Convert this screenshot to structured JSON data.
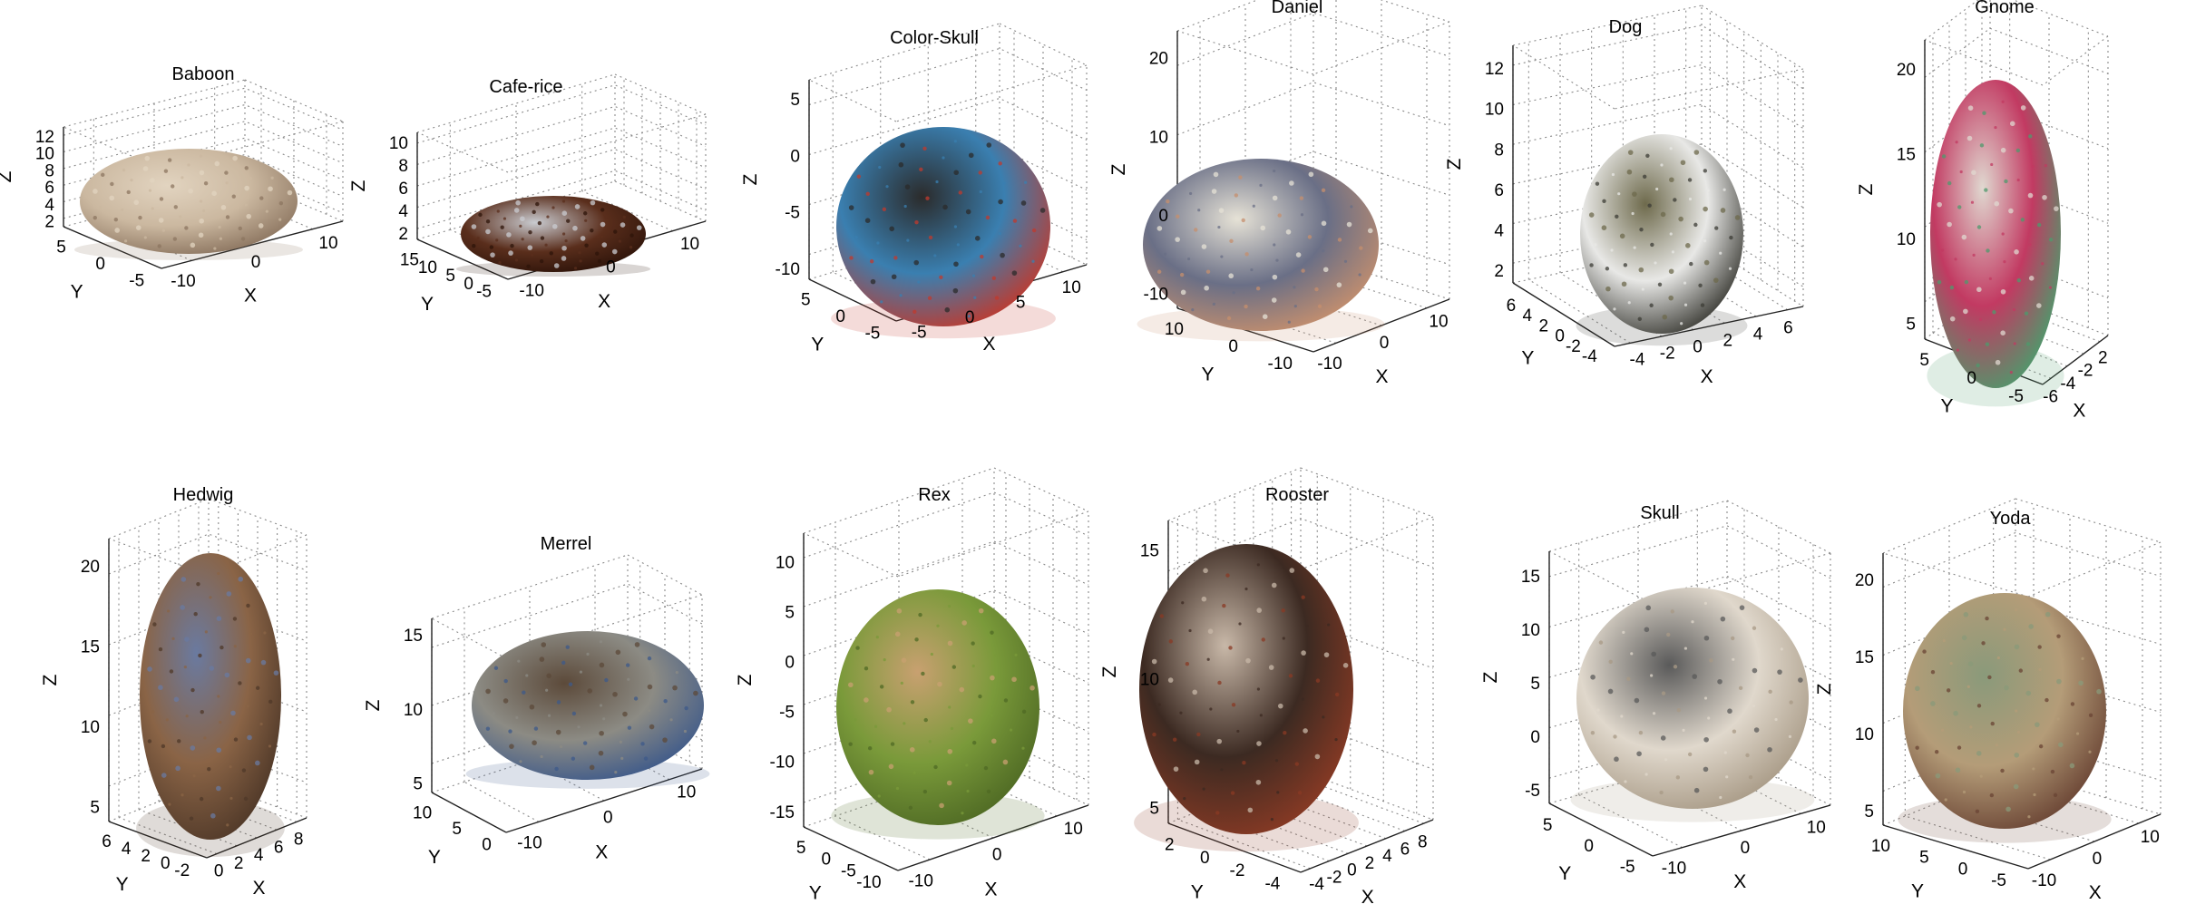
{
  "figure": {
    "panels": [
      {
        "title": "Baboon",
        "x_ticks": [
          "-10",
          "0",
          "10"
        ],
        "y_ticks": [
          "5",
          "0",
          "-5"
        ],
        "z_ticks": [
          "12",
          "10",
          "8",
          "6",
          "4",
          "2"
        ],
        "x_label": "X",
        "y_label": "Y",
        "z_label": "Z",
        "object": "baboon-skull",
        "colors": [
          "#cbb8a0",
          "#8c7560",
          "#e2d4c0"
        ]
      },
      {
        "title": "Cafe-rice",
        "x_ticks": [
          "-10",
          "0",
          "10"
        ],
        "y_ticks": [
          "15",
          "10",
          "5",
          "0",
          "-5"
        ],
        "z_ticks": [
          "10",
          "8",
          "6",
          "4",
          "2"
        ],
        "x_label": "X",
        "y_label": "Y",
        "z_label": "Z",
        "object": "rice-pile",
        "colors": [
          "#5a2e1c",
          "#2e140a",
          "#c9cbd0"
        ]
      },
      {
        "title": "Color-Skull",
        "x_ticks": [
          "-5",
          "0",
          "5",
          "10"
        ],
        "y_ticks": [
          "5",
          "0",
          "-5"
        ],
        "z_ticks": [
          "5",
          "0",
          "-5",
          "-10"
        ],
        "x_label": "X",
        "y_label": "Y",
        "z_label": "Z",
        "object": "beaded-skull",
        "colors": [
          "#3a7fb0",
          "#c03a2e",
          "#2b2b2b"
        ]
      },
      {
        "title": "Daniel",
        "x_ticks": [
          "-10",
          "0",
          "10"
        ],
        "y_ticks": [
          "10",
          "0",
          "-10"
        ],
        "z_ticks": [
          "20",
          "10",
          "0",
          "-10"
        ],
        "x_label": "X",
        "y_label": "Y",
        "z_label": "Z",
        "object": "man-with-hat",
        "colors": [
          "#6a6f86",
          "#c58f6e",
          "#e6e2d6"
        ]
      },
      {
        "title": "Dog",
        "x_ticks": [
          "-4",
          "-2",
          "0",
          "2",
          "4",
          "6"
        ],
        "y_ticks": [
          "6",
          "4",
          "2",
          "0",
          "-2",
          "-4"
        ],
        "z_ticks": [
          "12",
          "10",
          "8",
          "6",
          "4",
          "2"
        ],
        "x_label": "X",
        "y_label": "Y",
        "z_label": "Z",
        "object": "robot-dog",
        "colors": [
          "#e8e8e6",
          "#3c3c36",
          "#6e6a4c"
        ]
      },
      {
        "title": "Gnome",
        "x_ticks": [
          "-6",
          "-4",
          "-2",
          "2"
        ],
        "y_ticks": [
          "5",
          "0",
          "-5"
        ],
        "z_ticks": [
          "20",
          "15",
          "10",
          "5"
        ],
        "x_label": "X",
        "y_label": "Y",
        "z_label": "Z",
        "object": "garden-gnome",
        "colors": [
          "#c23a62",
          "#4d9a6c",
          "#e0d8d0"
        ]
      },
      {
        "title": "Hedwig",
        "x_ticks": [
          "0",
          "2",
          "4",
          "6",
          "8"
        ],
        "y_ticks": [
          "6",
          "4",
          "2",
          "0",
          "-2"
        ],
        "z_ticks": [
          "20",
          "15",
          "10",
          "5"
        ],
        "x_label": "X",
        "y_label": "Y",
        "z_label": "Z",
        "object": "owl-statue",
        "colors": [
          "#8a6446",
          "#4f3828",
          "#6a7aa0"
        ]
      },
      {
        "title": "Merrel",
        "x_ticks": [
          "-10",
          "0",
          "10"
        ],
        "y_ticks": [
          "10",
          "5",
          "0"
        ],
        "z_ticks": [
          "15",
          "10",
          "5"
        ],
        "x_label": "X",
        "y_label": "Y",
        "z_label": "Z",
        "object": "hiking-shoe",
        "colors": [
          "#8c8b84",
          "#3e5a8a",
          "#5c4a3a"
        ]
      },
      {
        "title": "Rex",
        "x_ticks": [
          "-10",
          "0",
          "10"
        ],
        "y_ticks": [
          "5",
          "0",
          "-5",
          "-10"
        ],
        "z_ticks": [
          "10",
          "5",
          "0",
          "-5",
          "-10",
          "-15"
        ],
        "x_label": "X",
        "y_label": "Y",
        "z_label": "Z",
        "object": "t-rex-toy",
        "colors": [
          "#7a9a3a",
          "#4f6a24",
          "#c8a070"
        ]
      },
      {
        "title": "Rooster",
        "x_ticks": [
          "-4",
          "-2",
          "0",
          "2",
          "4",
          "6",
          "8"
        ],
        "y_ticks": [
          "2",
          "0",
          "-2",
          "-4"
        ],
        "z_ticks": [
          "15",
          "10",
          "5"
        ],
        "x_label": "X",
        "y_label": "Y",
        "z_label": "Z",
        "object": "rooster-statue",
        "colors": [
          "#3c2a22",
          "#8a3a24",
          "#c8b8a8"
        ]
      },
      {
        "title": "Skull",
        "x_ticks": [
          "-10",
          "0",
          "10"
        ],
        "y_ticks": [
          "5",
          "0",
          "-5"
        ],
        "z_ticks": [
          "15",
          "10",
          "5",
          "0",
          "-5"
        ],
        "x_label": "X",
        "y_label": "Y",
        "z_label": "Z",
        "object": "stone-skull",
        "colors": [
          "#e0d8cc",
          "#a89a86",
          "#5a5a5a"
        ]
      },
      {
        "title": "Yoda",
        "x_ticks": [
          "-10",
          "0",
          "10"
        ],
        "y_ticks": [
          "10",
          "5",
          "0",
          "-5"
        ],
        "z_ticks": [
          "20",
          "15",
          "10",
          "5"
        ],
        "x_label": "X",
        "y_label": "Y",
        "z_label": "Z",
        "object": "yoda-figure",
        "colors": [
          "#b49c78",
          "#6a4434",
          "#8a9a7a"
        ]
      }
    ]
  }
}
